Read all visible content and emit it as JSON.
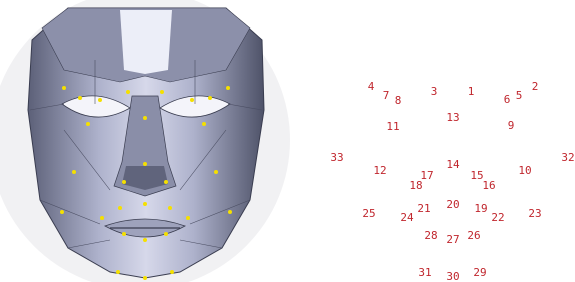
{
  "landmarks": [
    "1",
    "2",
    "3",
    "4",
    "5",
    "6",
    "7",
    "8",
    "9",
    "10",
    "11",
    "12",
    "13",
    "14",
    "15",
    "16",
    "17",
    "18",
    "19",
    "20",
    "21",
    "22",
    "23",
    "24",
    "25",
    "26",
    "27",
    "28",
    "29",
    "30",
    "31",
    "32",
    "33"
  ]
}
